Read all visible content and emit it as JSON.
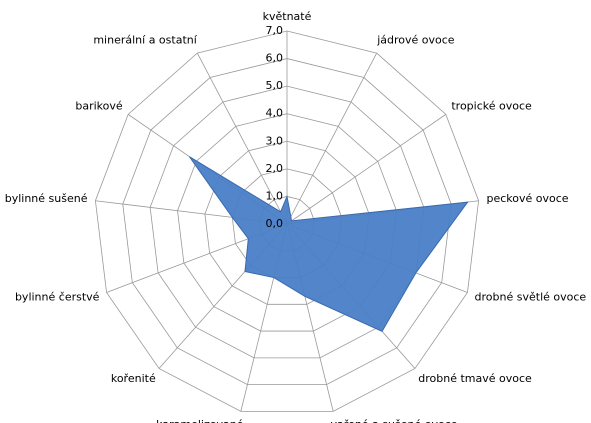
{
  "chart_data": {
    "type": "radar",
    "categories": [
      "květnaté",
      "jádrové ovoce",
      "tropické ovoce",
      "peckové ovoce",
      "drobné světlé ovoce",
      "drobné tmavé ovoce",
      "vařené a sušené ovoce",
      "karamelizované",
      "kořenité",
      "bylinné čerstvé",
      "bylinné sušené",
      "barikové",
      "minerální a ostatní"
    ],
    "values": [
      1.0,
      0.3,
      0.2,
      6.6,
      5.0,
      5.2,
      2.7,
      2.0,
      2.3,
      1.5,
      2.0,
      4.3,
      0.5
    ],
    "color": "#4a7ec8",
    "ylim": [
      0,
      7
    ],
    "yticks": [
      {
        "value": 0,
        "label": "0,0"
      },
      {
        "value": 1,
        "label": "1,0"
      },
      {
        "value": 2,
        "label": "2,0"
      },
      {
        "value": 3,
        "label": "3,0"
      },
      {
        "value": 4,
        "label": "4,0"
      },
      {
        "value": 5,
        "label": "5,0"
      },
      {
        "value": 6,
        "label": "6,0"
      },
      {
        "value": 7,
        "label": "7,0"
      }
    ],
    "grid": true
  }
}
